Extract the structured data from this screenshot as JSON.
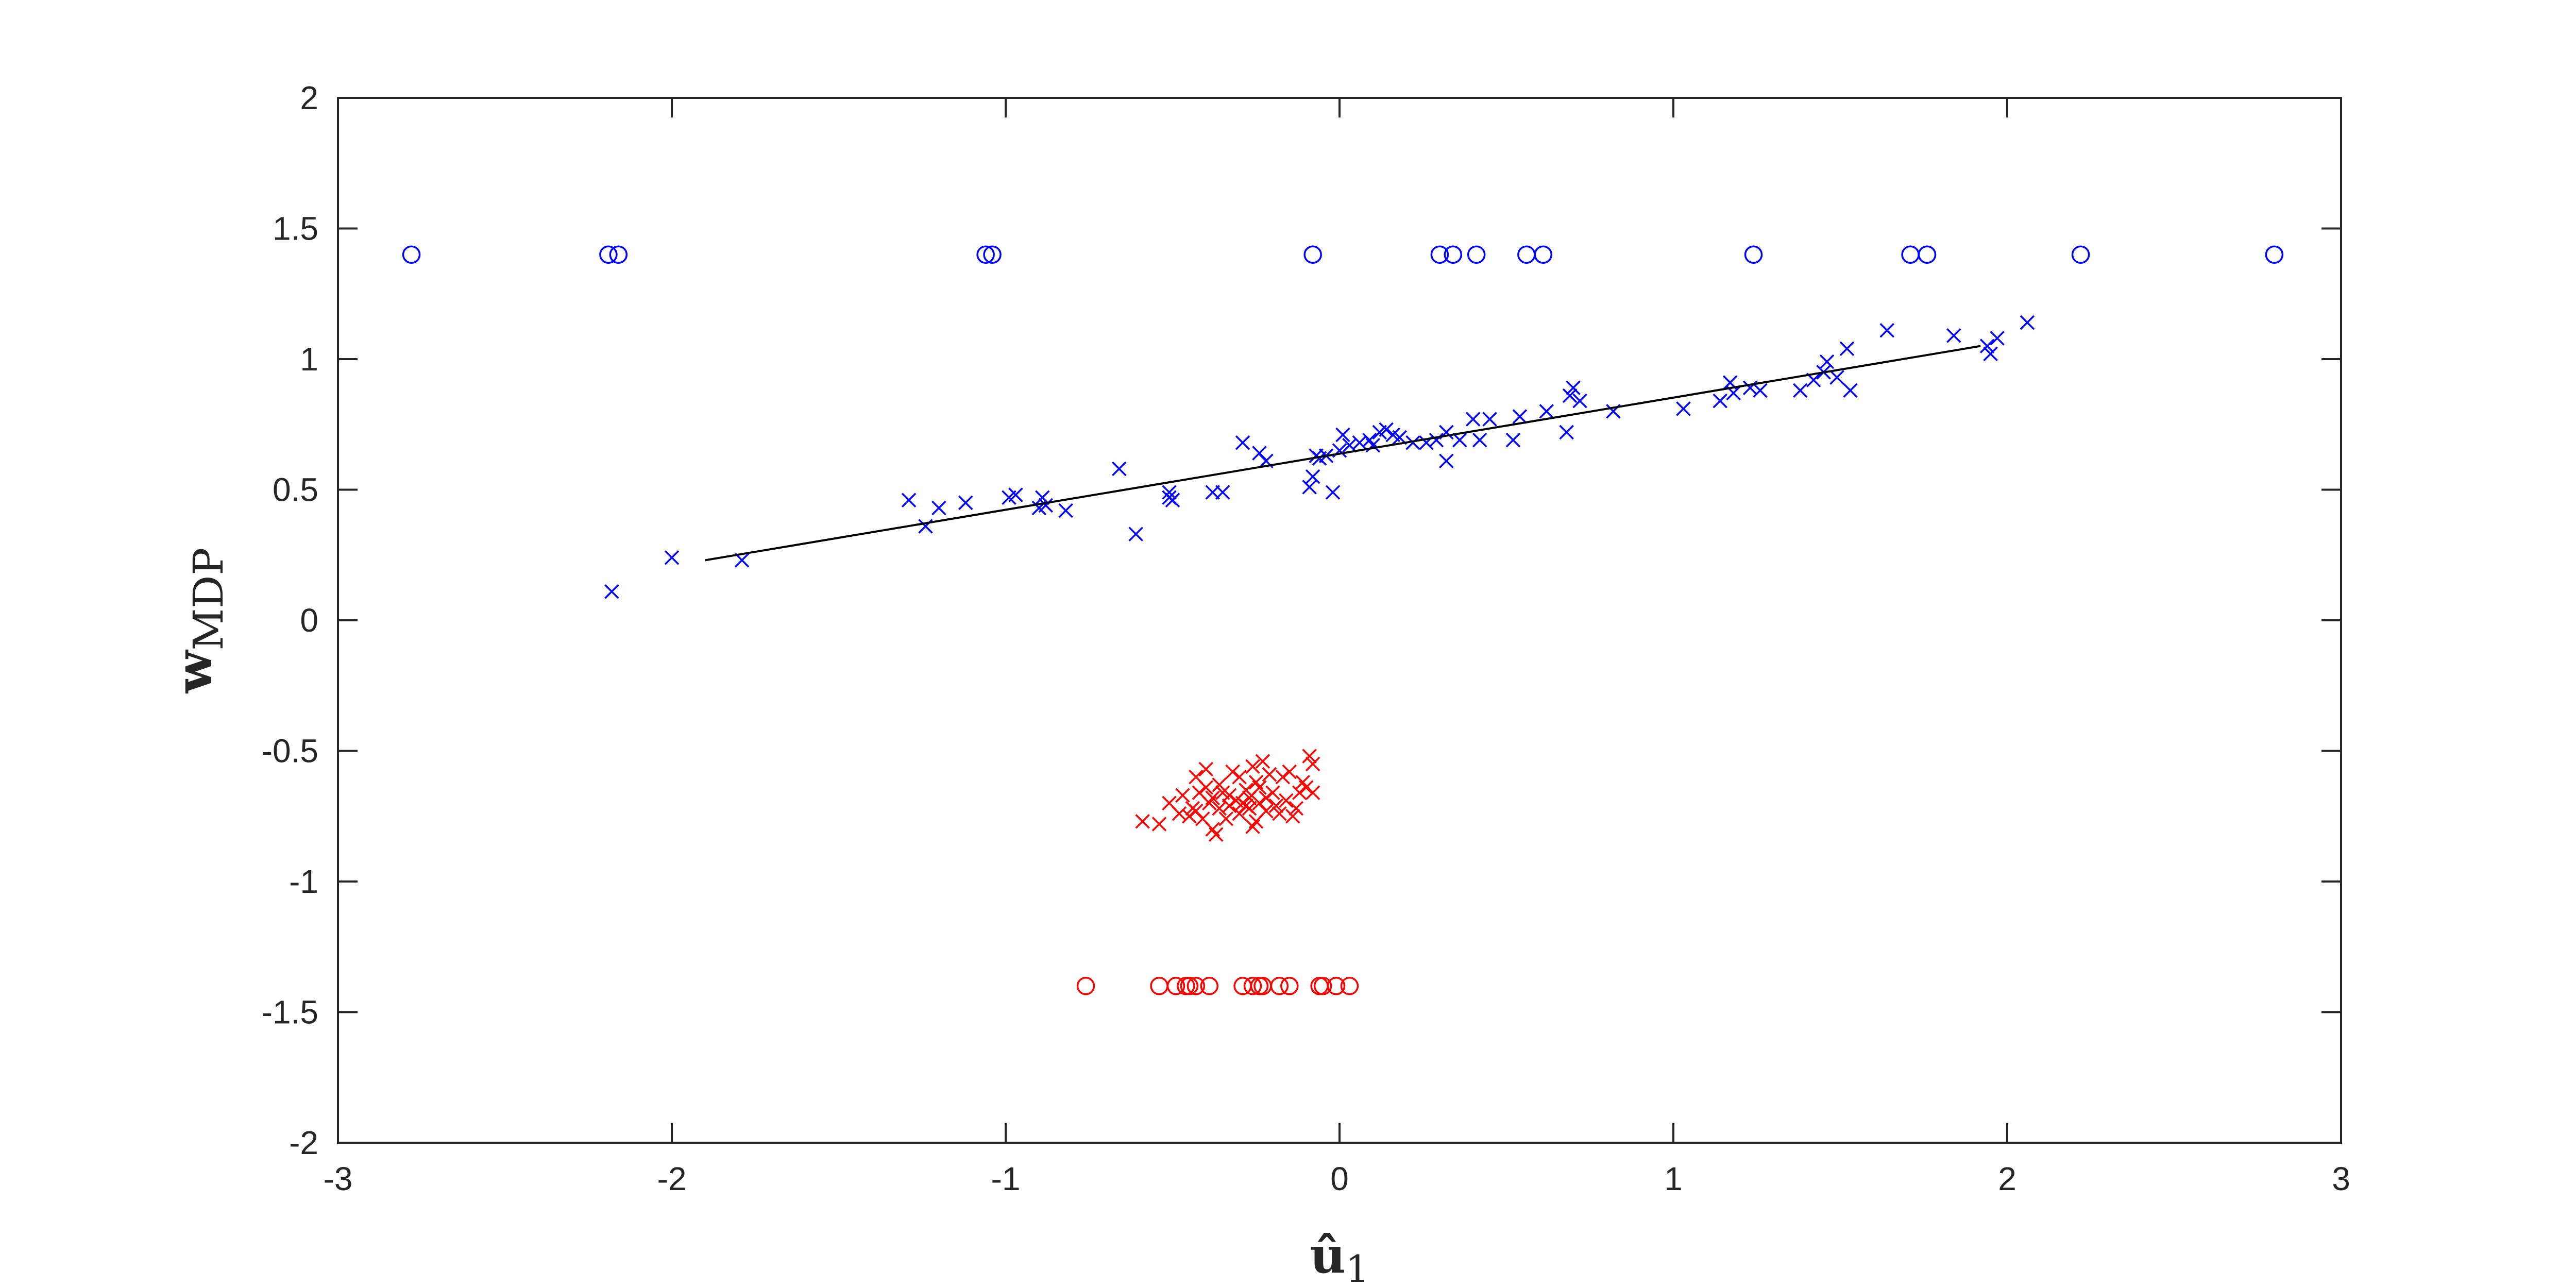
{
  "chart_data": {
    "type": "scatter",
    "xlabel": "û",
    "xlabel_sub": "1",
    "ylabel": "w",
    "ylabel_sub": "MDP",
    "xlim": [
      -3,
      3
    ],
    "ylim": [
      -2,
      2
    ],
    "grid": false,
    "x_ticks": [
      -3,
      -2,
      -1,
      0,
      1,
      2,
      3
    ],
    "x_tick_labels": [
      "-3",
      "-2",
      "-1",
      "0",
      "1",
      "2",
      "3"
    ],
    "y_ticks": [
      -2,
      -1.5,
      -1,
      -0.5,
      0,
      0.5,
      1,
      1.5,
      2
    ],
    "y_tick_labels": [
      "-2",
      "-1.5",
      "-1",
      "-0.5",
      "0",
      "0.5",
      "1",
      "1.5",
      "2"
    ],
    "colors": {
      "blue": "#0000ff",
      "red": "#ff0000",
      "line": "#000000",
      "axis": "#262626"
    },
    "series": [
      {
        "marker": "circle",
        "color": "#0000ff",
        "x": [
          -2.78,
          -2.19,
          -2.16,
          -1.06,
          -1.04,
          -0.08,
          0.3,
          0.34,
          0.41,
          0.56,
          0.61,
          1.24,
          1.71,
          1.76,
          2.22,
          2.8
        ],
        "y": [
          1.4,
          1.4,
          1.4,
          1.4,
          1.4,
          1.4,
          1.4,
          1.4,
          1.4,
          1.4,
          1.4,
          1.4,
          1.4,
          1.4,
          1.4,
          1.4
        ]
      },
      {
        "marker": "x",
        "color": "#0000ff",
        "x": [
          -2.18,
          -2.0,
          -1.79,
          -1.29,
          -1.24,
          -1.2,
          -1.12,
          -0.99,
          -0.97,
          -0.9,
          -0.89,
          -0.88,
          -0.82,
          -0.66,
          -0.61,
          -0.51,
          -0.5,
          -0.51,
          -0.38,
          -0.35,
          -0.29,
          -0.24,
          -0.22,
          -0.09,
          -0.08,
          -0.07,
          -0.06,
          -0.04,
          -0.02,
          0.0,
          0.01,
          0.03,
          0.06,
          0.09,
          0.1,
          0.12,
          0.14,
          0.16,
          0.18,
          0.22,
          0.26,
          0.29,
          0.32,
          0.32,
          0.36,
          0.4,
          0.42,
          0.45,
          0.52,
          0.54,
          0.62,
          0.68,
          0.69,
          0.7,
          0.72,
          0.82,
          1.03,
          1.14,
          1.17,
          1.18,
          1.23,
          1.26,
          1.38,
          1.42,
          1.45,
          1.46,
          1.49,
          1.52,
          1.53,
          1.64,
          1.84,
          1.94,
          1.95,
          1.97,
          2.06
        ],
        "y": [
          0.11,
          0.24,
          0.23,
          0.46,
          0.36,
          0.43,
          0.45,
          0.47,
          0.48,
          0.43,
          0.47,
          0.44,
          0.42,
          0.58,
          0.33,
          0.47,
          0.46,
          0.49,
          0.49,
          0.49,
          0.68,
          0.64,
          0.61,
          0.51,
          0.55,
          0.63,
          0.62,
          0.63,
          0.49,
          0.65,
          0.71,
          0.67,
          0.68,
          0.69,
          0.67,
          0.72,
          0.73,
          0.71,
          0.7,
          0.68,
          0.68,
          0.69,
          0.61,
          0.72,
          0.69,
          0.77,
          0.69,
          0.77,
          0.69,
          0.78,
          0.8,
          0.72,
          0.86,
          0.89,
          0.84,
          0.8,
          0.81,
          0.84,
          0.91,
          0.87,
          0.89,
          0.88,
          0.88,
          0.92,
          0.95,
          0.99,
          0.93,
          1.04,
          0.88,
          1.11,
          1.09,
          1.05,
          1.02,
          1.08,
          1.14
        ]
      },
      {
        "marker": "x",
        "color": "#ff0000",
        "x": [
          -0.59,
          -0.54,
          -0.51,
          -0.48,
          -0.47,
          -0.45,
          -0.44,
          -0.43,
          -0.42,
          -0.41,
          -0.4,
          -0.4,
          -0.39,
          -0.38,
          -0.38,
          -0.37,
          -0.36,
          -0.36,
          -0.35,
          -0.34,
          -0.33,
          -0.32,
          -0.31,
          -0.3,
          -0.3,
          -0.29,
          -0.28,
          -0.27,
          -0.27,
          -0.26,
          -0.25,
          -0.25,
          -0.24,
          -0.24,
          -0.23,
          -0.22,
          -0.22,
          -0.21,
          -0.2,
          -0.19,
          -0.18,
          -0.17,
          -0.16,
          -0.15,
          -0.14,
          -0.13,
          -0.12,
          -0.11,
          -0.1,
          -0.09,
          -0.08,
          -0.08,
          -0.43,
          -0.33,
          -0.28,
          -0.26
        ],
        "y": [
          -0.77,
          -0.78,
          -0.7,
          -0.74,
          -0.67,
          -0.75,
          -0.72,
          -0.6,
          -0.66,
          -0.76,
          -0.64,
          -0.57,
          -0.7,
          -0.8,
          -0.68,
          -0.82,
          -0.72,
          -0.63,
          -0.66,
          -0.76,
          -0.71,
          -0.58,
          -0.69,
          -0.74,
          -0.6,
          -0.7,
          -0.65,
          -0.68,
          -0.72,
          -0.56,
          -0.62,
          -0.77,
          -0.7,
          -0.64,
          -0.54,
          -0.73,
          -0.68,
          -0.59,
          -0.66,
          -0.71,
          -0.74,
          -0.6,
          -0.69,
          -0.58,
          -0.75,
          -0.72,
          -0.66,
          -0.62,
          -0.64,
          -0.52,
          -0.55,
          -0.66,
          -0.73,
          -0.67,
          -0.71,
          -0.79
        ]
      },
      {
        "marker": "circle",
        "color": "#ff0000",
        "x": [
          -0.76,
          -0.54,
          -0.49,
          -0.46,
          -0.45,
          -0.43,
          -0.39,
          -0.29,
          -0.26,
          -0.24,
          -0.23,
          -0.18,
          -0.15,
          -0.06,
          -0.05,
          -0.01,
          0.03
        ],
        "y": [
          -1.4,
          -1.4,
          -1.4,
          -1.4,
          -1.4,
          -1.4,
          -1.4,
          -1.4,
          -1.4,
          -1.4,
          -1.4,
          -1.4,
          -1.4,
          -1.4,
          -1.4,
          -1.4,
          -1.4
        ]
      },
      {
        "marker": "line",
        "color": "#000000",
        "x": [
          -1.9,
          1.92
        ],
        "y": [
          0.23,
          1.05
        ]
      }
    ]
  }
}
